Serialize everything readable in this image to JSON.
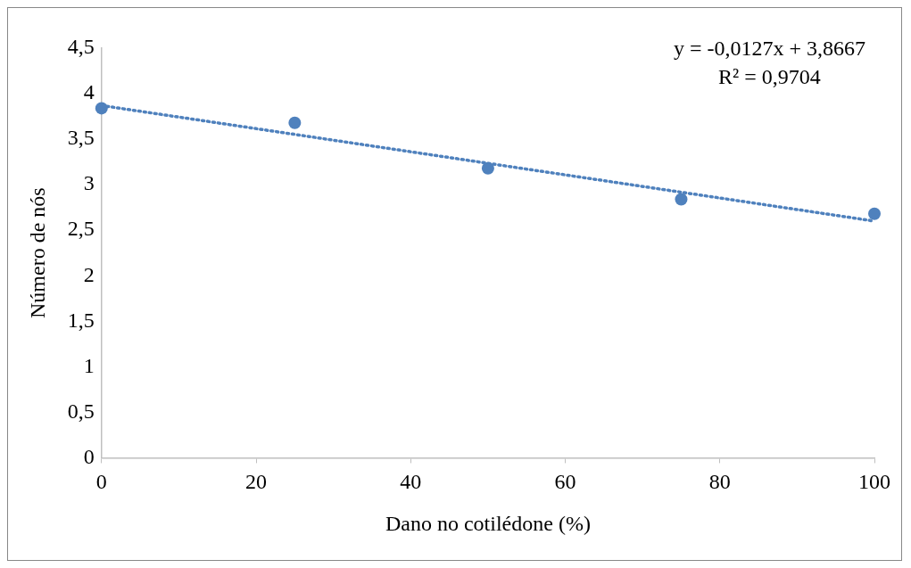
{
  "chart_data": {
    "type": "scatter",
    "xlabel": "Dano no cotilédone (%)",
    "ylabel": "Número de nós",
    "xlim": [
      0,
      100
    ],
    "xticks": [
      0,
      20,
      40,
      60,
      80,
      100
    ],
    "ylim": [
      0,
      4.5
    ],
    "yticks": [
      0,
      {
        "value": 0.5,
        "label": "0,5"
      },
      1,
      {
        "value": 1.5,
        "label": "1,5"
      },
      2,
      {
        "value": 2.5,
        "label": "2,5"
      },
      3,
      {
        "value": 3.5,
        "label": "3,5"
      },
      4,
      {
        "value": 4.5,
        "label": "4,5"
      }
    ],
    "grid": false,
    "legend": false,
    "marker": "circle",
    "annotations": [
      "y = -0,0127x + 3,8667",
      "R² = 0,9704"
    ],
    "series": [
      {
        "type": "scatter",
        "color": "#4f81bd",
        "x": [
          0,
          25,
          50,
          75,
          100
        ],
        "values": [
          3.84,
          3.68,
          3.18,
          2.84,
          2.68
        ]
      },
      {
        "type": "line",
        "color": "#4f81bd",
        "x": [
          0,
          100
        ],
        "values": [
          3.87,
          2.6
        ],
        "line_style": "dotted",
        "marker": "none"
      }
    ]
  }
}
